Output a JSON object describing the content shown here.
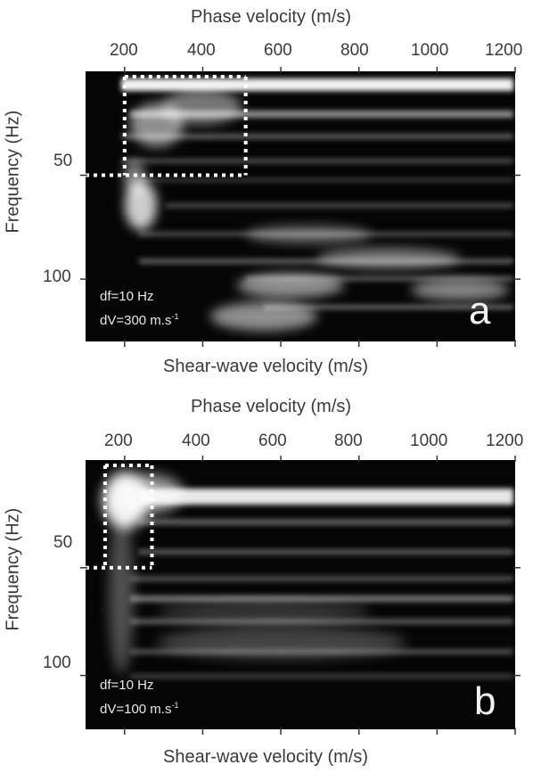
{
  "chart_data": [
    {
      "type": "heatmap",
      "panel_letter": "a",
      "top_xlabel": "Phase velocity (m/s)",
      "bottom_xlabel": "Shear-wave velocity (m/s)",
      "ylabel": "Frequency (Hz)",
      "top_ticks": [
        "200",
        "400",
        "600",
        "800",
        "1000",
        "1200"
      ],
      "top_tick_values": [
        200,
        400,
        600,
        800,
        1000,
        1200
      ],
      "y_ticks": [
        "50",
        "100"
      ],
      "y_tick_values": [
        50,
        100
      ],
      "xlim": [
        100,
        1200
      ],
      "ylim": [
        0,
        130
      ],
      "annotation": {
        "df": "df=10 Hz",
        "dV": "dV=300 m.s",
        "dV_exp": "-1"
      },
      "box": {
        "x": [
          200,
          510
        ],
        "y": [
          0,
          50
        ]
      }
    },
    {
      "type": "heatmap",
      "panel_letter": "b",
      "top_xlabel": "Phase velocity (m/s)",
      "bottom_xlabel": "Shear-wave velocity (m/s)",
      "ylabel": "Frequency (Hz)",
      "top_ticks": [
        "200",
        "400",
        "600",
        "800",
        "1000",
        "1200"
      ],
      "top_tick_values": [
        200,
        400,
        600,
        800,
        1000,
        1200
      ],
      "y_ticks": [
        "50",
        "100"
      ],
      "y_tick_values": [
        50,
        100
      ],
      "xlim": [
        100,
        1200
      ],
      "ylim": [
        0,
        125
      ],
      "annotation": {
        "df": "df=10 Hz",
        "dV": "dV=100 m.s",
        "dV_exp": "-1"
      },
      "box": {
        "x": [
          150,
          270
        ],
        "y": [
          0,
          50
        ]
      }
    }
  ]
}
